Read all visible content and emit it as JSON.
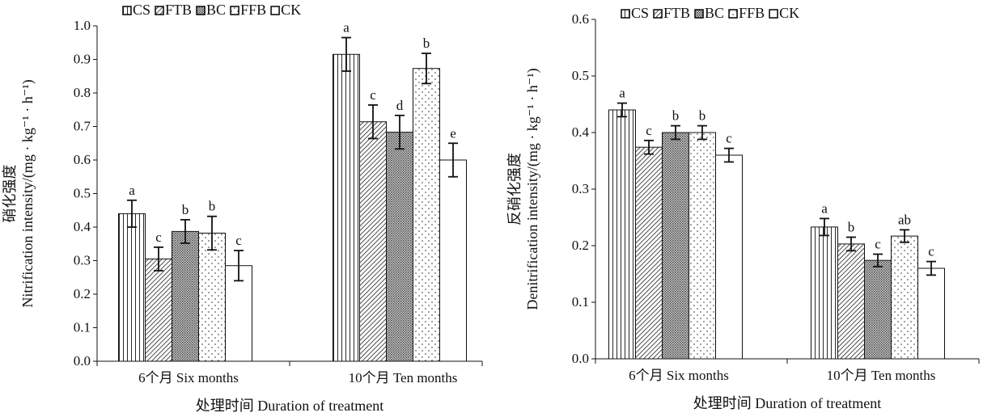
{
  "chart_data": [
    {
      "type": "bar",
      "categories": [
        "6个月  Six months",
        "10个月  Ten months"
      ],
      "series": [
        {
          "name": "CS",
          "values": [
            0.44,
            0.915
          ],
          "errors": [
            0.04,
            0.05
          ],
          "labels": [
            "a",
            "a"
          ]
        },
        {
          "name": "FTB",
          "values": [
            0.305,
            0.714
          ],
          "errors": [
            0.035,
            0.05
          ],
          "labels": [
            "c",
            "c"
          ]
        },
        {
          "name": "BC",
          "values": [
            0.387,
            0.683
          ],
          "errors": [
            0.035,
            0.05
          ],
          "labels": [
            "b",
            "d"
          ]
        },
        {
          "name": "FFB",
          "values": [
            0.382,
            0.873
          ],
          "errors": [
            0.05,
            0.045
          ],
          "labels": [
            "b",
            "b"
          ]
        },
        {
          "name": "CK",
          "values": [
            0.285,
            0.6
          ],
          "errors": [
            0.045,
            0.05
          ],
          "labels": [
            "c",
            "e"
          ]
        }
      ],
      "ylabel_cn": "硝化强度",
      "ylabel": "Nitrification intensity/(mg · kg⁻¹ · h⁻¹)",
      "xlabel": "处理时间 Duration of treatment",
      "ylim": [
        0,
        1.0
      ],
      "yticks": [
        "0.0",
        "0.1",
        "0.2",
        "0.3",
        "0.4",
        "0.5",
        "0.6",
        "0.7",
        "0.8",
        "0.9",
        "1.0"
      ],
      "legend_position": "top-left",
      "grid": false
    },
    {
      "type": "bar",
      "categories": [
        "6个月  Six months",
        "10个月  Ten months"
      ],
      "series": [
        {
          "name": "CS",
          "values": [
            0.44,
            0.233
          ],
          "errors": [
            0.012,
            0.015
          ],
          "labels": [
            "a",
            "a"
          ]
        },
        {
          "name": "FTB",
          "values": [
            0.374,
            0.203
          ],
          "errors": [
            0.012,
            0.012
          ],
          "labels": [
            "c",
            "b"
          ]
        },
        {
          "name": "BC",
          "values": [
            0.4,
            0.174
          ],
          "errors": [
            0.012,
            0.011
          ],
          "labels": [
            "b",
            "c"
          ]
        },
        {
          "name": "FFB",
          "values": [
            0.4,
            0.217
          ],
          "errors": [
            0.012,
            0.011
          ],
          "labels": [
            "b",
            "ab"
          ]
        },
        {
          "name": "CK",
          "values": [
            0.36,
            0.16
          ],
          "errors": [
            0.012,
            0.012
          ],
          "labels": [
            "c",
            "c"
          ]
        }
      ],
      "ylabel_cn": "反硝化强度",
      "ylabel": "Denitrification intensity/(mg · kg⁻¹ · h⁻¹)",
      "xlabel": "处理时间 Duration of treatment",
      "ylim": [
        0,
        0.6
      ],
      "yticks": [
        "0.0",
        "0.1",
        "0.2",
        "0.3",
        "0.4",
        "0.5",
        "0.6"
      ],
      "legend_position": "top-left",
      "grid": false
    }
  ]
}
